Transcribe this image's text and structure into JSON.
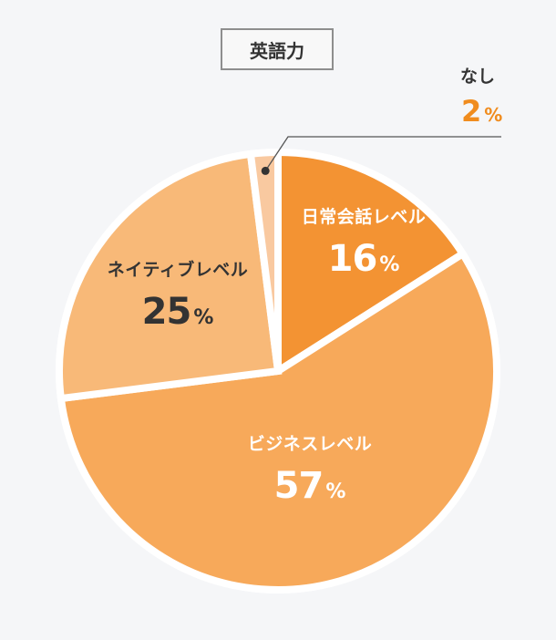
{
  "chart_data": {
    "type": "pie",
    "title": "英語力",
    "unit": "%",
    "slices": [
      {
        "label": "日常会話レベル",
        "value": 16,
        "color": "#f39333"
      },
      {
        "label": "ビジネスレベル",
        "value": 57,
        "color": "#f7a95a"
      },
      {
        "label": "ネイティブレベル",
        "value": 25,
        "color": "#f8b978"
      },
      {
        "label": "なし",
        "value": 2,
        "color": "#f9c9a0"
      }
    ]
  },
  "colors": {
    "background": "#f5f6f8",
    "separator": "#ffffff",
    "callout_value": "#f08c1e",
    "label_dark": "#333333",
    "label_light": "#ffffff"
  }
}
